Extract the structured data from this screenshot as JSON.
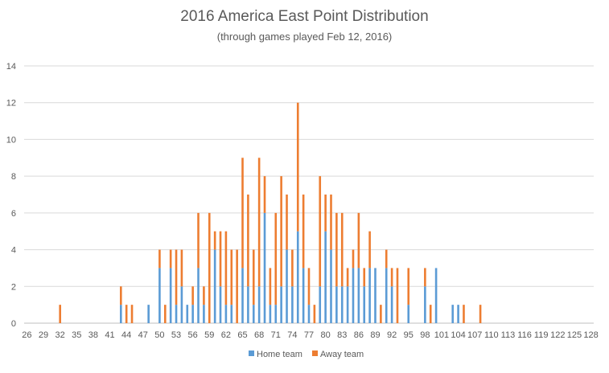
{
  "chart_data": {
    "type": "bar",
    "stacked": true,
    "title": "2016 America East Point Distribution",
    "subtitle": "(through games played Feb 12, 2016)",
    "xlabel": "",
    "ylabel": "",
    "ylim": [
      0,
      14
    ],
    "yticks": [
      0,
      2,
      4,
      6,
      8,
      10,
      12,
      14
    ],
    "x_range": [
      26,
      128
    ],
    "x_tick_labels": [
      "26",
      "29",
      "32",
      "35",
      "38",
      "41",
      "44",
      "47",
      "50",
      "53",
      "56",
      "59",
      "62",
      "65",
      "68",
      "71",
      "74",
      "77",
      "80",
      "83",
      "86",
      "89",
      "92",
      "95",
      "98",
      "101",
      "104",
      "107",
      "110",
      "113",
      "116",
      "119",
      "122",
      "125",
      "128"
    ],
    "grid": true,
    "legend_position": "bottom",
    "series": [
      {
        "name": "Home team",
        "color": "#5b9bd5",
        "points": [
          [
            43,
            1
          ],
          [
            48,
            1
          ],
          [
            50,
            3
          ],
          [
            52,
            3
          ],
          [
            53,
            1
          ],
          [
            54,
            2
          ],
          [
            55,
            1
          ],
          [
            56,
            1
          ],
          [
            57,
            3
          ],
          [
            58,
            1
          ],
          [
            60,
            4
          ],
          [
            61,
            2
          ],
          [
            62,
            1
          ],
          [
            63,
            1
          ],
          [
            65,
            3
          ],
          [
            66,
            2
          ],
          [
            67,
            1
          ],
          [
            68,
            2
          ],
          [
            69,
            6
          ],
          [
            70,
            1
          ],
          [
            71,
            1
          ],
          [
            72,
            2
          ],
          [
            73,
            4
          ],
          [
            74,
            2
          ],
          [
            75,
            5
          ],
          [
            76,
            3
          ],
          [
            77,
            1
          ],
          [
            79,
            2
          ],
          [
            80,
            5
          ],
          [
            81,
            4
          ],
          [
            82,
            2
          ],
          [
            83,
            2
          ],
          [
            84,
            2
          ],
          [
            85,
            3
          ],
          [
            86,
            3
          ],
          [
            87,
            2
          ],
          [
            88,
            3
          ],
          [
            89,
            3
          ],
          [
            91,
            3
          ],
          [
            92,
            2
          ],
          [
            95,
            1
          ],
          [
            98,
            2
          ],
          [
            100,
            3
          ],
          [
            103,
            1
          ],
          [
            104,
            1
          ]
        ]
      },
      {
        "name": "Away team",
        "color": "#ed7d31",
        "points": [
          [
            32,
            1
          ],
          [
            43,
            1
          ],
          [
            44,
            1
          ],
          [
            45,
            1
          ],
          [
            50,
            1
          ],
          [
            51,
            1
          ],
          [
            52,
            1
          ],
          [
            53,
            3
          ],
          [
            54,
            2
          ],
          [
            56,
            1
          ],
          [
            57,
            3
          ],
          [
            58,
            1
          ],
          [
            59,
            6
          ],
          [
            60,
            1
          ],
          [
            61,
            3
          ],
          [
            62,
            4
          ],
          [
            63,
            3
          ],
          [
            64,
            4
          ],
          [
            65,
            6
          ],
          [
            66,
            5
          ],
          [
            67,
            3
          ],
          [
            68,
            7
          ],
          [
            69,
            2
          ],
          [
            70,
            2
          ],
          [
            71,
            5
          ],
          [
            72,
            6
          ],
          [
            73,
            3
          ],
          [
            74,
            2
          ],
          [
            75,
            7
          ],
          [
            76,
            4
          ],
          [
            77,
            2
          ],
          [
            78,
            1
          ],
          [
            79,
            6
          ],
          [
            80,
            2
          ],
          [
            81,
            3
          ],
          [
            82,
            4
          ],
          [
            83,
            4
          ],
          [
            84,
            1
          ],
          [
            85,
            1
          ],
          [
            86,
            3
          ],
          [
            87,
            1
          ],
          [
            88,
            2
          ],
          [
            90,
            1
          ],
          [
            91,
            1
          ],
          [
            92,
            1
          ],
          [
            93,
            3
          ],
          [
            95,
            2
          ],
          [
            98,
            1
          ],
          [
            99,
            1
          ],
          [
            105,
            1
          ],
          [
            108,
            1
          ]
        ]
      }
    ]
  }
}
